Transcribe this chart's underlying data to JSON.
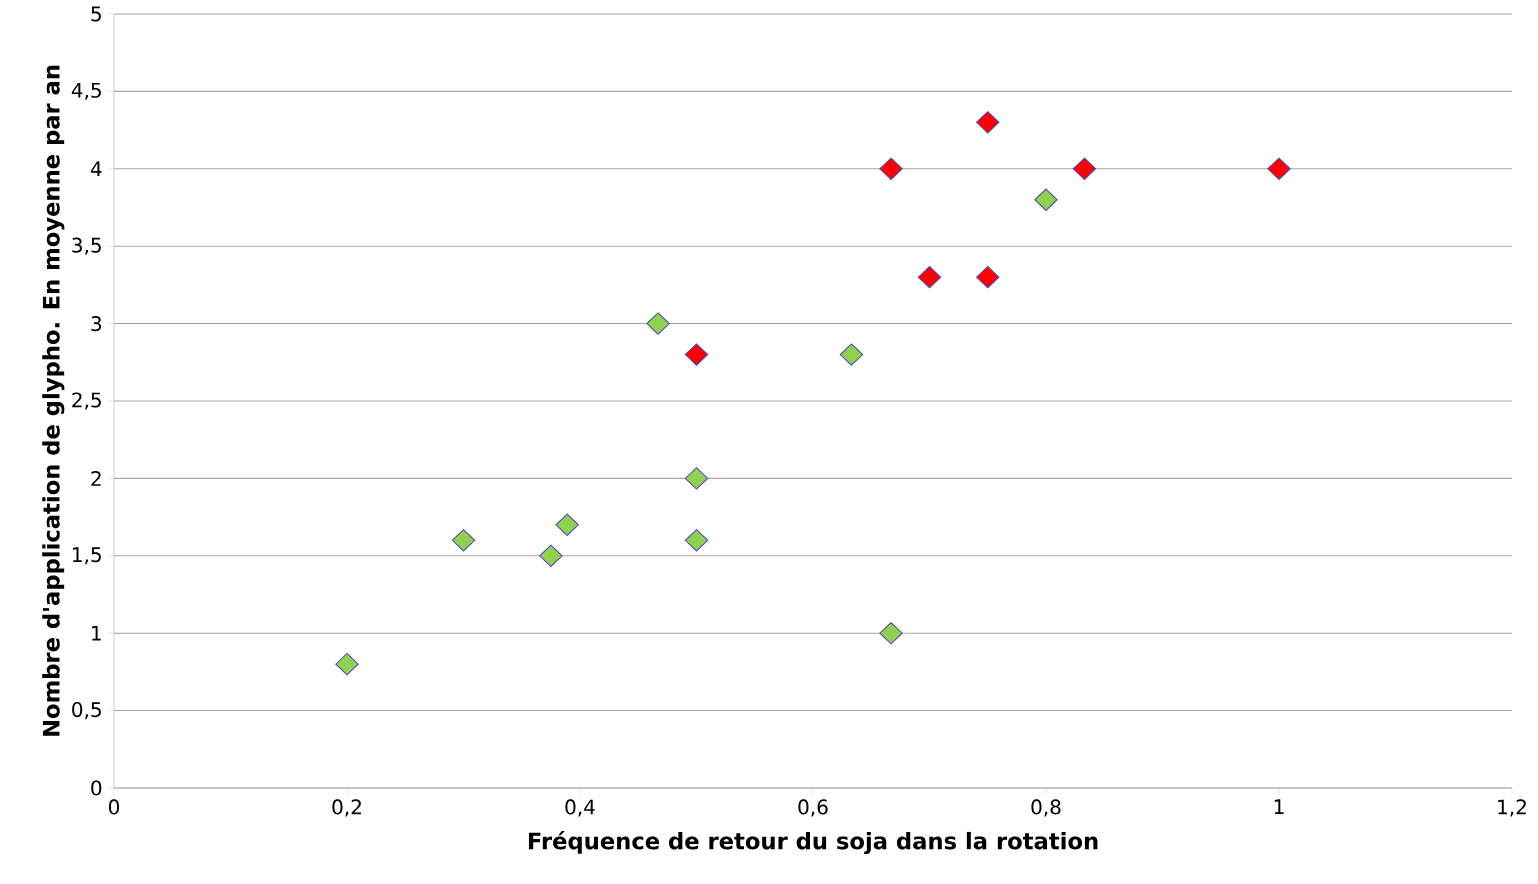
{
  "chart_data": {
    "type": "scatter",
    "xlabel": "Fréquence de retour du soja dans la rotation",
    "ylabel": "Nombre d'application de glypho. En moyenne par an",
    "series": [
      {
        "color": "#92d050",
        "x": [
          0.2,
          0.3,
          0.375,
          0.389,
          0.467,
          0.5,
          0.5,
          0.633,
          0.667,
          0.8
        ],
        "values": [
          0.8,
          1.6,
          1.5,
          1.7,
          3.0,
          2.0,
          1.6,
          2.8,
          1.0,
          3.8
        ]
      },
      {
        "color": "#ff0000",
        "x": [
          0.5,
          0.667,
          0.7,
          0.75,
          0.75,
          0.833,
          1.0
        ],
        "values": [
          2.8,
          4.0,
          3.3,
          4.3,
          3.3,
          4.0,
          4.0
        ]
      }
    ],
    "xlim": [
      0,
      1.2
    ],
    "xticks": [
      0,
      {
        "value": 0.2,
        "label": "0,2"
      },
      {
        "value": 0.4,
        "label": "0,4"
      },
      {
        "value": 0.6,
        "label": "0,6"
      },
      {
        "value": 0.8,
        "label": "0,8"
      },
      1,
      {
        "value": 1.2,
        "label": "1,2"
      }
    ],
    "ylim": [
      0,
      5
    ],
    "yticks": [
      0,
      {
        "value": 0.5,
        "label": "0,5"
      },
      1,
      {
        "value": 1.5,
        "label": "1,5"
      },
      2,
      {
        "value": 2.5,
        "label": "2,5"
      },
      3,
      {
        "value": 3.5,
        "label": "3,5"
      },
      4,
      {
        "value": 4.5,
        "label": "4,5"
      },
      5
    ],
    "grid": "y",
    "marker": "diamond"
  }
}
